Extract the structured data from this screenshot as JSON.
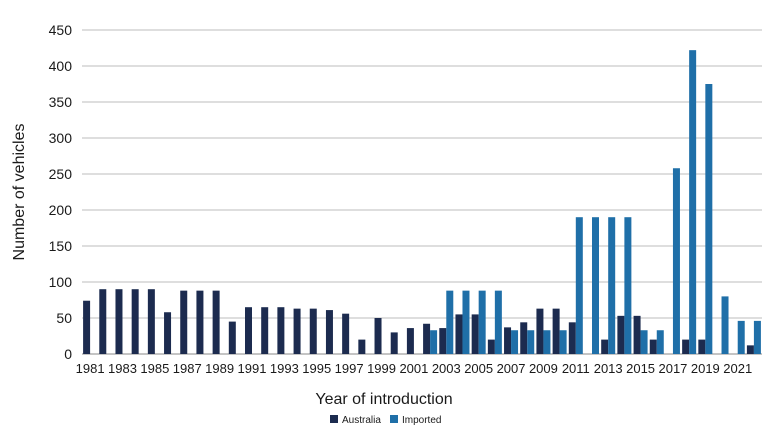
{
  "chart_data": {
    "type": "bar",
    "title": "",
    "xlabel": "Year of introduction",
    "ylabel": "Number of vehicles",
    "ylim": [
      0,
      450
    ],
    "yticks": [
      0,
      50,
      100,
      150,
      200,
      250,
      300,
      350,
      400,
      450
    ],
    "grid": true,
    "legend_position": "bottom",
    "categories": [
      "1981",
      "1982",
      "1983",
      "1984",
      "1985",
      "1986",
      "1987",
      "1988",
      "1989",
      "1990",
      "1991",
      "1992",
      "1993",
      "1994",
      "1995",
      "1996",
      "1997",
      "1998",
      "1999",
      "2000",
      "2001",
      "2002",
      "2003",
      "2004",
      "2005",
      "2006",
      "2007",
      "2008",
      "2009",
      "2010",
      "2011",
      "2012",
      "2013",
      "2014",
      "2015",
      "2016",
      "2017",
      "2018",
      "2019",
      "2020",
      "2021",
      "2022"
    ],
    "xtick_labels": [
      "1981",
      "1983",
      "1985",
      "1987",
      "1989",
      "1991",
      "1993",
      "1995",
      "1997",
      "1999",
      "2001",
      "2003",
      "2005",
      "2007",
      "2009",
      "2011",
      "2013",
      "2015",
      "2017",
      "2019",
      "2021"
    ],
    "series": [
      {
        "name": "Australia",
        "color": "#1c2b4f",
        "values": [
          74,
          90,
          90,
          90,
          90,
          58,
          88,
          88,
          88,
          45,
          65,
          65,
          65,
          63,
          63,
          61,
          56,
          20,
          50,
          30,
          36,
          42,
          36,
          55,
          55,
          20,
          37,
          44,
          63,
          63,
          44,
          0,
          20,
          53,
          53,
          20,
          0,
          20,
          20,
          0,
          0,
          12
        ]
      },
      {
        "name": "Imported",
        "color": "#1f6fa8",
        "values": [
          0,
          0,
          0,
          0,
          0,
          0,
          0,
          0,
          0,
          0,
          0,
          0,
          0,
          0,
          0,
          0,
          0,
          0,
          0,
          0,
          0,
          33,
          88,
          88,
          88,
          88,
          33,
          33,
          33,
          33,
          190,
          190,
          190,
          190,
          33,
          33,
          258,
          422,
          375,
          80,
          46,
          46
        ]
      }
    ]
  }
}
